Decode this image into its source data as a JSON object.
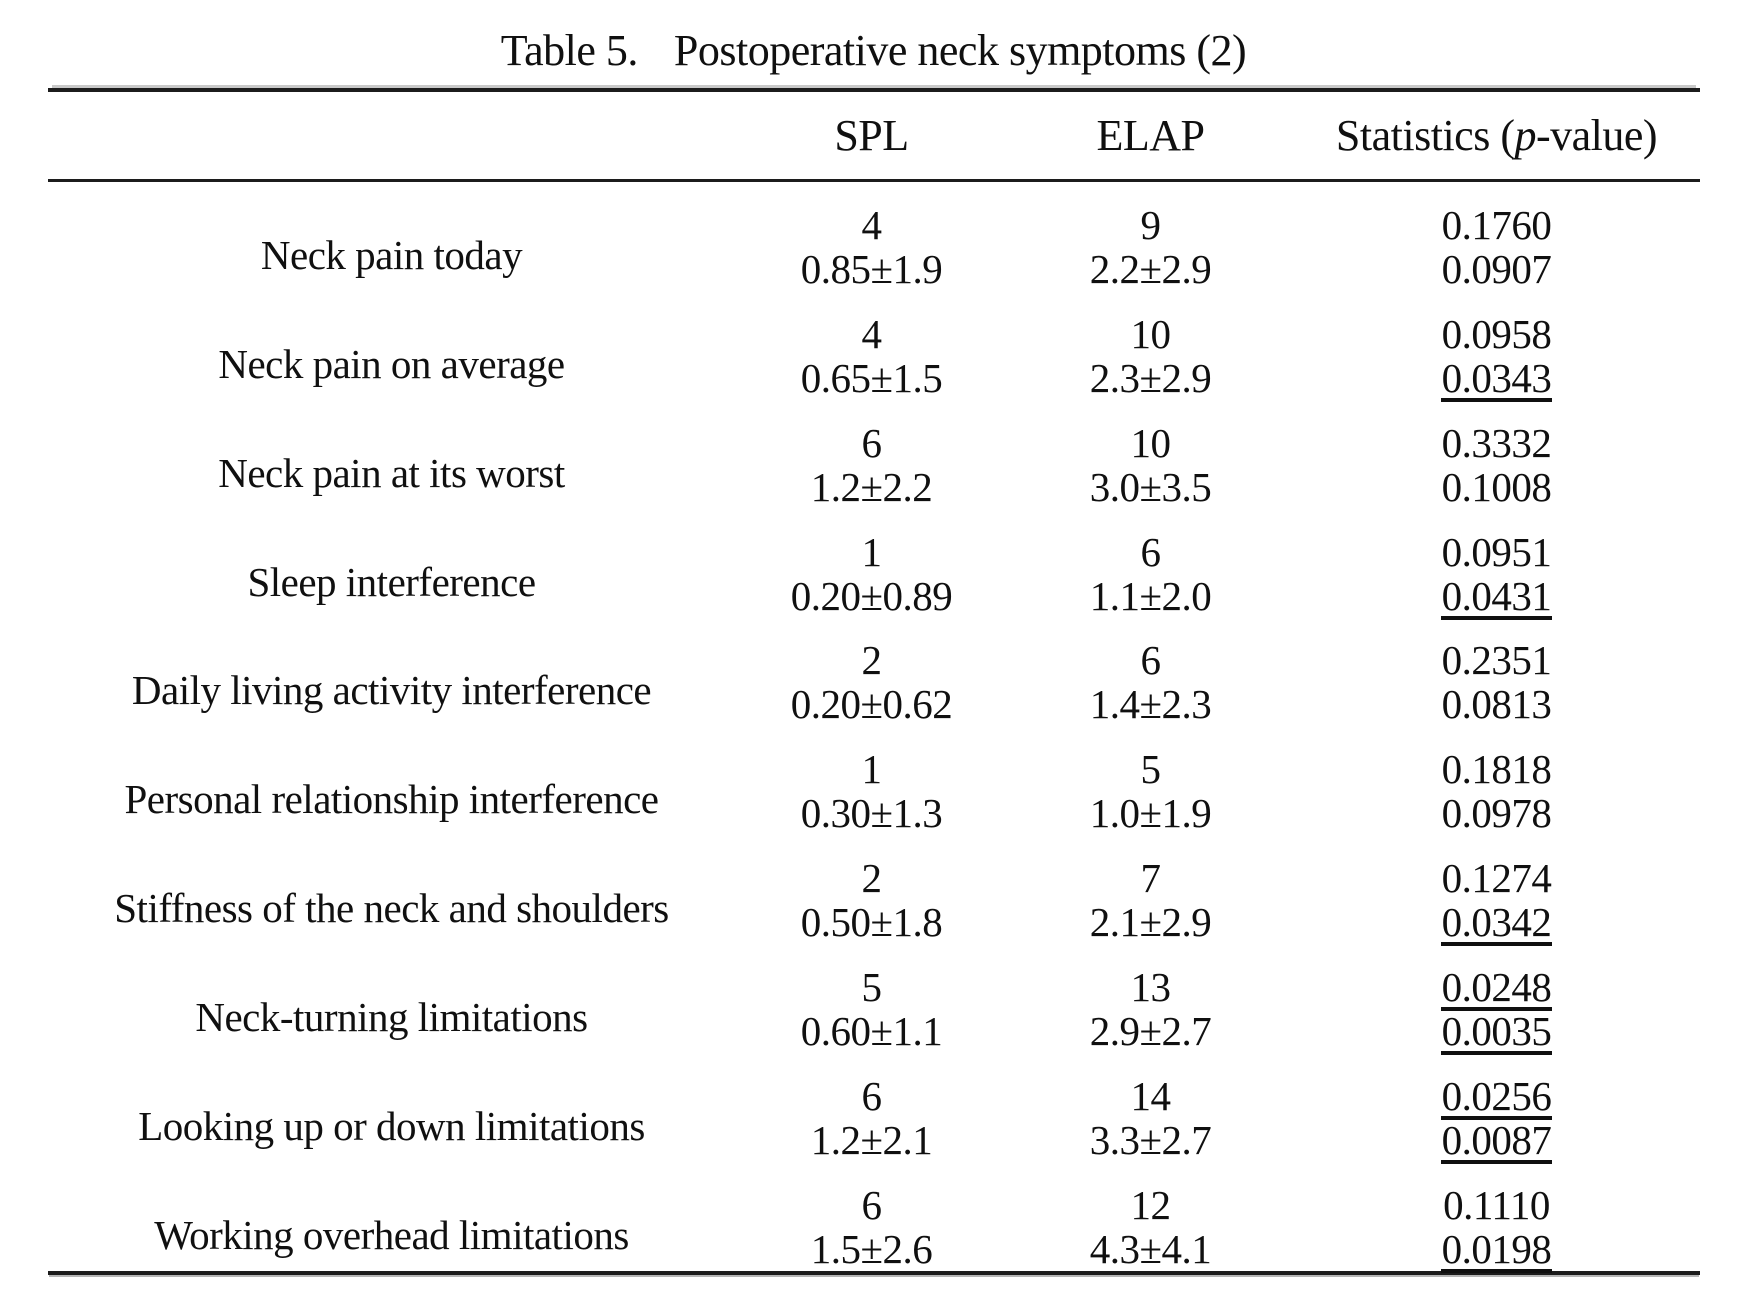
{
  "title": {
    "label": "Table 5.",
    "text": "Postoperative neck symptoms (2)"
  },
  "table": {
    "headers": {
      "spl": "SPL",
      "elap": "ELAP",
      "statistics": {
        "pre": "Statistics (",
        "p": "p",
        "post": "-value)"
      }
    },
    "rows": [
      {
        "label": "Neck pain today",
        "spl": {
          "n": "4",
          "mean": "0.85±1.9"
        },
        "elap": {
          "n": "9",
          "mean": "2.2±2.9"
        },
        "stats": {
          "p1": "0.1760",
          "p1_underlined": false,
          "p2": "0.0907",
          "p2_underlined": false
        }
      },
      {
        "label": "Neck pain on average",
        "spl": {
          "n": "4",
          "mean": "0.65±1.5"
        },
        "elap": {
          "n": "10",
          "mean": "2.3±2.9"
        },
        "stats": {
          "p1": "0.0958",
          "p1_underlined": false,
          "p2": "0.0343",
          "p2_underlined": true
        }
      },
      {
        "label": "Neck pain at its worst",
        "spl": {
          "n": "6",
          "mean": "1.2±2.2"
        },
        "elap": {
          "n": "10",
          "mean": "3.0±3.5"
        },
        "stats": {
          "p1": "0.3332",
          "p1_underlined": false,
          "p2": "0.1008",
          "p2_underlined": false
        }
      },
      {
        "label": "Sleep interference",
        "spl": {
          "n": "1",
          "mean": "0.20±0.89"
        },
        "elap": {
          "n": "6",
          "mean": "1.1±2.0"
        },
        "stats": {
          "p1": "0.0951",
          "p1_underlined": false,
          "p2": "0.0431",
          "p2_underlined": true
        }
      },
      {
        "label": "Daily living activity interference",
        "spl": {
          "n": "2",
          "mean": "0.20±0.62"
        },
        "elap": {
          "n": "6",
          "mean": "1.4±2.3"
        },
        "stats": {
          "p1": "0.2351",
          "p1_underlined": false,
          "p2": "0.0813",
          "p2_underlined": false
        }
      },
      {
        "label": "Personal relationship interference",
        "spl": {
          "n": "1",
          "mean": "0.30±1.3"
        },
        "elap": {
          "n": "5",
          "mean": "1.0±1.9"
        },
        "stats": {
          "p1": "0.1818",
          "p1_underlined": false,
          "p2": "0.0978",
          "p2_underlined": false
        }
      },
      {
        "label": "Stiffness of the neck and shoulders",
        "spl": {
          "n": "2",
          "mean": "0.50±1.8"
        },
        "elap": {
          "n": "7",
          "mean": "2.1±2.9"
        },
        "stats": {
          "p1": "0.1274",
          "p1_underlined": false,
          "p2": "0.0342",
          "p2_underlined": true
        }
      },
      {
        "label": "Neck-turning limitations",
        "spl": {
          "n": "5",
          "mean": "0.60±1.1"
        },
        "elap": {
          "n": "13",
          "mean": "2.9±2.7"
        },
        "stats": {
          "p1": "0.0248",
          "p1_underlined": true,
          "p2": "0.0035",
          "p2_underlined": true
        }
      },
      {
        "label": "Looking up or down limitations",
        "spl": {
          "n": "6",
          "mean": "1.2±2.1"
        },
        "elap": {
          "n": "14",
          "mean": "3.3±2.7"
        },
        "stats": {
          "p1": "0.0256",
          "p1_underlined": true,
          "p2": "0.0087",
          "p2_underlined": true
        }
      },
      {
        "label": "Working overhead limitations",
        "spl": {
          "n": "6",
          "mean": "1.5±2.6"
        },
        "elap": {
          "n": "12",
          "mean": "4.3±4.1"
        },
        "stats": {
          "p1": "0.1110",
          "p1_underlined": false,
          "p2": "0.0198",
          "p2_underlined": true
        }
      }
    ]
  }
}
